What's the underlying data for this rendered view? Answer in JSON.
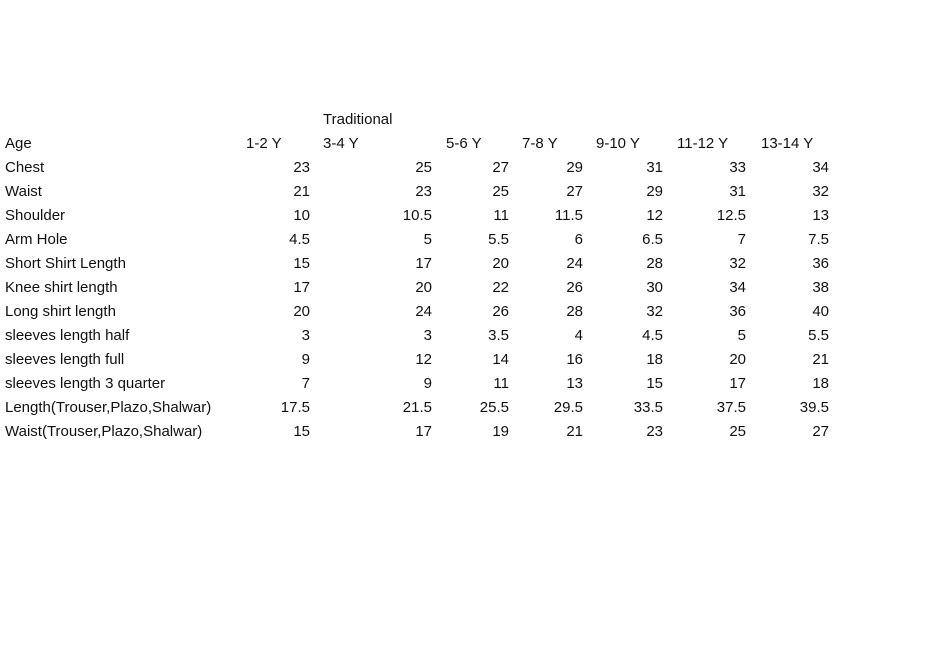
{
  "group_label": "Traditional",
  "header": {
    "label": "Age",
    "columns": [
      "1-2 Y",
      "3-4 Y",
      "5-6 Y",
      "7-8 Y",
      "9-10 Y",
      "11-12 Y",
      "13-14 Y"
    ]
  },
  "rows": [
    {
      "label": "Chest",
      "values": [
        "23",
        "25",
        "27",
        "29",
        "31",
        "33",
        "34"
      ]
    },
    {
      "label": "Waist",
      "values": [
        "21",
        "23",
        "25",
        "27",
        "29",
        "31",
        "32"
      ]
    },
    {
      "label": "Shoulder",
      "values": [
        "10",
        "10.5",
        "11",
        "11.5",
        "12",
        "12.5",
        "13"
      ]
    },
    {
      "label": "Arm Hole",
      "values": [
        "4.5",
        "5",
        "5.5",
        "6",
        "6.5",
        "7",
        "7.5"
      ]
    },
    {
      "label": "Short Shirt Length",
      "values": [
        "15",
        "17",
        "20",
        "24",
        "28",
        "32",
        "36"
      ]
    },
    {
      "label": "Knee shirt length",
      "values": [
        "17",
        "20",
        "22",
        "26",
        "30",
        "34",
        "38"
      ]
    },
    {
      "label": "Long shirt length",
      "values": [
        "20",
        "24",
        "26",
        "28",
        "32",
        "36",
        "40"
      ]
    },
    {
      "label": "sleeves length half",
      "values": [
        "3",
        "3",
        "3.5",
        "4",
        "4.5",
        "5",
        "5.5"
      ]
    },
    {
      "label": "sleeves length full",
      "values": [
        "9",
        "12",
        "14",
        "16",
        "18",
        "20",
        "21"
      ]
    },
    {
      "label": "sleeves length 3 quarter",
      "values": [
        "7",
        "9",
        "11",
        "13",
        "15",
        "17",
        "18"
      ]
    },
    {
      "label": "Length(Trouser,Plazo,Shalwar)",
      "values": [
        "17.5",
        "21.5",
        "25.5",
        "29.5",
        "33.5",
        "37.5",
        "39.5"
      ]
    },
    {
      "label": "Waist(Trouser,Plazo,Shalwar)",
      "values": [
        "15",
        "17",
        "19",
        "21",
        "23",
        "25",
        "27"
      ]
    }
  ]
}
